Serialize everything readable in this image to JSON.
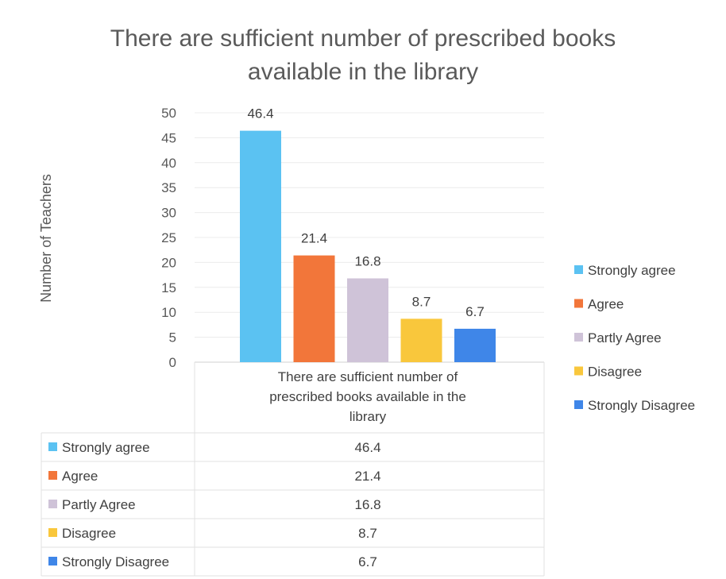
{
  "chart_data": {
    "type": "bar",
    "title": "There are sufficient number of prescribed books available in the library",
    "title_lines": [
      "There are sufficient number of prescribed books",
      "available in the library"
    ],
    "ylabel": "Number of Teachers",
    "xlabel": "",
    "category_label": "There are sufficient number of prescribed books available in the library",
    "category_label_lines": [
      "There are sufficient number of",
      "prescribed books available in the",
      "library"
    ],
    "ylim": [
      0,
      50
    ],
    "yticks": [
      0,
      5,
      10,
      15,
      20,
      25,
      30,
      35,
      40,
      45,
      50
    ],
    "grid": true,
    "legend_position": "right",
    "series": [
      {
        "name": "Strongly agree",
        "value": 46.4,
        "label": "46.4",
        "color": "#5bc2f2"
      },
      {
        "name": "Agree",
        "value": 21.4,
        "label": "21.4",
        "color": "#f2763a"
      },
      {
        "name": "Partly Agree",
        "value": 16.8,
        "label": "16.8",
        "color": "#cfc3d8"
      },
      {
        "name": "Disagree",
        "value": 8.7,
        "label": "8.7",
        "color": "#f9c73c"
      },
      {
        "name": "Strongly Disagree",
        "value": 6.7,
        "label": "6.7",
        "color": "#3f86e8"
      }
    ],
    "data_table": true
  }
}
